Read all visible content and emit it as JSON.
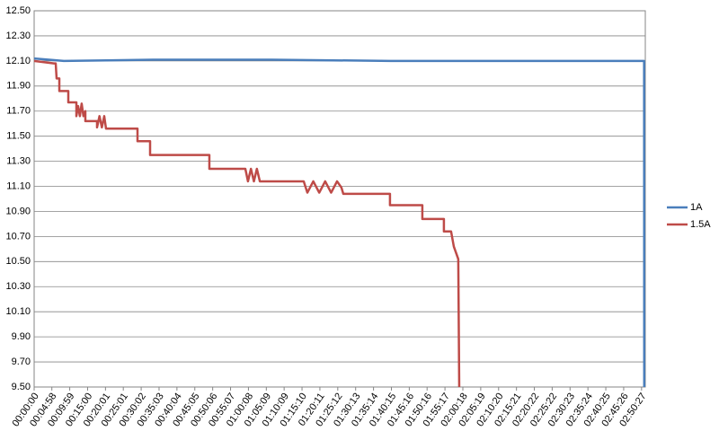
{
  "chart_data": {
    "type": "line",
    "ylim": [
      9.5,
      12.5
    ],
    "yticks": [
      {
        "value": 9.5,
        "label": "9.50"
      },
      {
        "value": 9.7,
        "label": "9.70"
      },
      {
        "value": 9.9,
        "label": "9.90"
      },
      {
        "value": 10.1,
        "label": "10.10"
      },
      {
        "value": 10.3,
        "label": "10.30"
      },
      {
        "value": 10.5,
        "label": "10.50"
      },
      {
        "value": 10.7,
        "label": "10.70"
      },
      {
        "value": 10.9,
        "label": "10.90"
      },
      {
        "value": 11.1,
        "label": "11.10"
      },
      {
        "value": 11.3,
        "label": "11.30"
      },
      {
        "value": 11.5,
        "label": "11.50"
      },
      {
        "value": 11.7,
        "label": "11.70"
      },
      {
        "value": 11.9,
        "label": "11.90"
      },
      {
        "value": 12.1,
        "label": "12.10"
      },
      {
        "value": 12.3,
        "label": "12.30"
      },
      {
        "value": 12.5,
        "label": "12.50"
      }
    ],
    "xlim": [
      0,
      10290
    ],
    "xticks": [
      {
        "value": 0,
        "label": "00:00:00"
      },
      {
        "value": 298,
        "label": "00:04:58"
      },
      {
        "value": 599,
        "label": "00:09:59"
      },
      {
        "value": 900,
        "label": "00:15:00"
      },
      {
        "value": 1201,
        "label": "00:20:01"
      },
      {
        "value": 1501,
        "label": "00:25:01"
      },
      {
        "value": 1802,
        "label": "00:30:02"
      },
      {
        "value": 2103,
        "label": "00:35:03"
      },
      {
        "value": 2404,
        "label": "00:40:04"
      },
      {
        "value": 2705,
        "label": "00:45:05"
      },
      {
        "value": 3006,
        "label": "00:50:06"
      },
      {
        "value": 3307,
        "label": "00:55:07"
      },
      {
        "value": 3608,
        "label": "01:00:08"
      },
      {
        "value": 3909,
        "label": "01:05:09"
      },
      {
        "value": 4209,
        "label": "01:10:09"
      },
      {
        "value": 4510,
        "label": "01:15:10"
      },
      {
        "value": 4811,
        "label": "01:20:11"
      },
      {
        "value": 5112,
        "label": "01:25:12"
      },
      {
        "value": 5413,
        "label": "01:30:13"
      },
      {
        "value": 5714,
        "label": "01:35:14"
      },
      {
        "value": 6015,
        "label": "01:40:15"
      },
      {
        "value": 6316,
        "label": "01:45:16"
      },
      {
        "value": 6616,
        "label": "01:50:16"
      },
      {
        "value": 6917,
        "label": "01:55:17"
      },
      {
        "value": 7218,
        "label": "02:00:18"
      },
      {
        "value": 7519,
        "label": "02:05:19"
      },
      {
        "value": 7820,
        "label": "02:10:20"
      },
      {
        "value": 8121,
        "label": "02:15:21"
      },
      {
        "value": 8422,
        "label": "02:20:22"
      },
      {
        "value": 8722,
        "label": "02:25:22"
      },
      {
        "value": 9023,
        "label": "02:30:23"
      },
      {
        "value": 9324,
        "label": "02:35:24"
      },
      {
        "value": 9625,
        "label": "02:40:25"
      },
      {
        "value": 9926,
        "label": "02:45:26"
      },
      {
        "value": 10227,
        "label": "02:50:27"
      }
    ],
    "grid": true,
    "legend": "right",
    "series": [
      {
        "name": "1A",
        "color": "#4a7ebb",
        "x": [
          0,
          500,
          2000,
          4000,
          6000,
          8000,
          10200,
          10270,
          10272
        ],
        "values": [
          12.12,
          12.1,
          12.11,
          12.11,
          12.1,
          12.1,
          12.1,
          12.1,
          9.5
        ]
      },
      {
        "name": "1.5A",
        "color": "#be4b48",
        "x": [
          0,
          333,
          363,
          378,
          424,
          424,
          575,
          575,
          711,
          711,
          740,
          770,
          800,
          830,
          862,
          862,
          1059,
          1059,
          1100,
          1140,
          1180,
          1210,
          1740,
          1740,
          1952,
          1952,
          2950,
          2950,
          3556,
          3600,
          3650,
          3700,
          3750,
          3800,
          3964,
          4539,
          4600,
          4700,
          4800,
          4900,
          5000,
          5100,
          5174,
          5205,
          5991,
          5991,
          6536,
          6536,
          6899,
          6899,
          7020,
          7066,
          7141,
          7157
        ],
        "values": [
          12.1,
          12.08,
          12.08,
          11.96,
          11.96,
          11.86,
          11.86,
          11.77,
          11.77,
          11.66,
          11.74,
          11.66,
          11.76,
          11.66,
          11.7,
          11.62,
          11.62,
          11.57,
          11.66,
          11.57,
          11.66,
          11.56,
          11.56,
          11.46,
          11.46,
          11.35,
          11.35,
          11.24,
          11.24,
          11.14,
          11.24,
          11.14,
          11.24,
          11.14,
          11.14,
          11.14,
          11.05,
          11.14,
          11.05,
          11.14,
          11.05,
          11.14,
          11.09,
          11.04,
          11.04,
          10.95,
          10.95,
          10.84,
          10.84,
          10.74,
          10.74,
          10.62,
          10.52,
          9.5
        ]
      }
    ]
  }
}
